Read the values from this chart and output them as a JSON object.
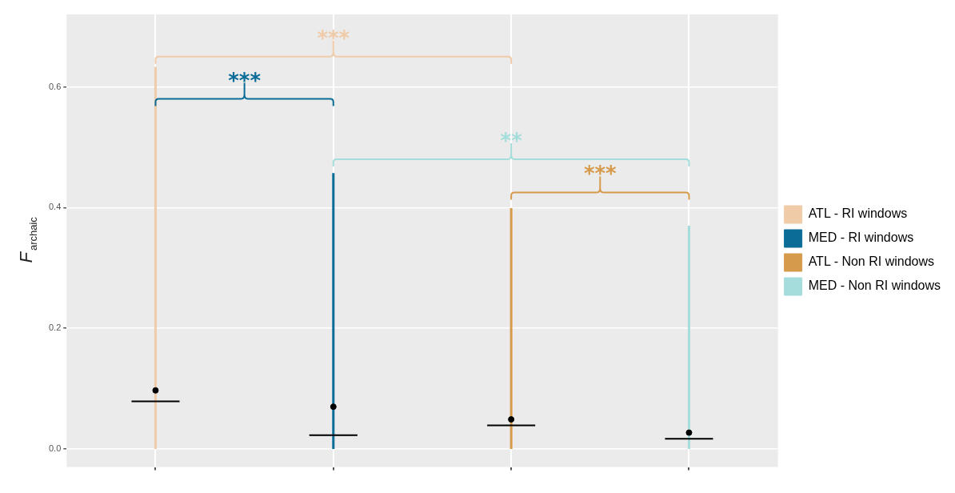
{
  "chart_data": {
    "type": "box",
    "ylabel": "F$_{archaic}$",
    "categories": [
      null,
      null,
      null,
      null
    ],
    "ylim": [
      -0.03,
      0.72
    ],
    "yticks": [
      {
        "value": 0,
        "label": "0.0"
      },
      {
        "value": 0.2,
        "label": "0.2"
      },
      {
        "value": 0.4,
        "label": "0.4"
      },
      {
        "value": 0.6,
        "label": "0.6"
      }
    ],
    "grid": true,
    "legend": "right",
    "marker": "circle",
    "series": [
      {
        "name": "ATL - RI windows",
        "color": "#f0cba8",
        "boxes": [
          {
            "low": 0,
            "q1": 0.079,
            "median": 0.079,
            "q3": 0.079,
            "high": 0.633,
            "mean": 0.097
          },
          null,
          null,
          null
        ]
      },
      {
        "name": "MED - RI windows",
        "color": "#0a6c97",
        "boxes": [
          null,
          {
            "low": 0,
            "q1": 0.023,
            "median": 0.023,
            "q3": 0.023,
            "high": 0.457,
            "mean": 0.07
          },
          null,
          null
        ]
      },
      {
        "name": "ATL - Non RI windows",
        "color": "#d69a4b",
        "boxes": [
          null,
          null,
          {
            "low": 0,
            "q1": 0.039,
            "median": 0.039,
            "q3": 0.039,
            "high": 0.399,
            "mean": 0.049
          },
          null
        ]
      },
      {
        "name": "MED - Non RI windows",
        "color": "#a5dcdc",
        "boxes": [
          null,
          null,
          null,
          {
            "low": 0,
            "q1": 0.017,
            "median": 0.017,
            "q3": 0.017,
            "high": 0.37,
            "mean": 0.027
          }
        ]
      }
    ],
    "annotations": [
      "***",
      "***",
      "**",
      "***"
    ]
  }
}
